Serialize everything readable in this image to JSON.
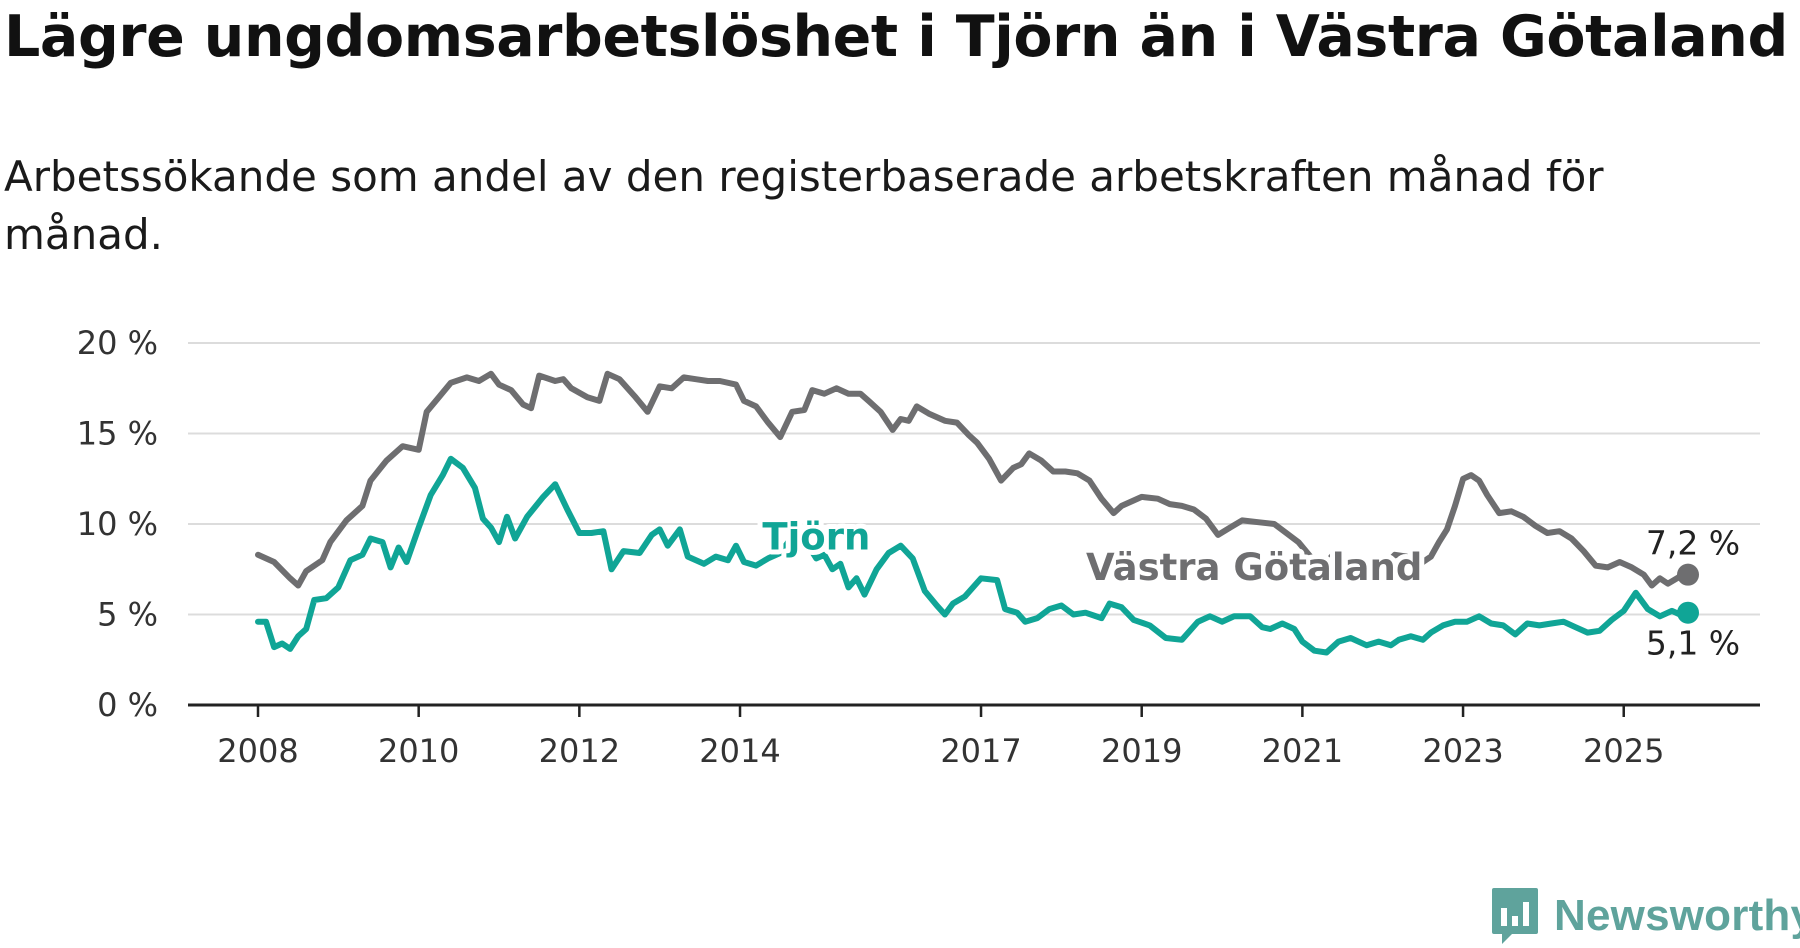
{
  "title": "Lägre ungdomsarbetslöshet i Tjörn än i Västra Götaland",
  "subtitle": "Arbetssökande som andel av den registerbaserade arbetskraften månad för månad.",
  "brand": {
    "name": "Newsworthy",
    "color": "#5fa39c"
  },
  "chart_data": {
    "type": "line",
    "title": "Lägre ungdomsarbetslöshet i Tjörn än i Västra Götaland",
    "ylim": [
      0,
      20
    ],
    "xlim": [
      2008.0,
      2025.8
    ],
    "y_ticks": [
      0,
      5,
      10,
      15,
      20
    ],
    "y_tick_labels": [
      "0 %",
      "5 %",
      "10 %",
      "15 %",
      "20 %"
    ],
    "x_ticks": [
      2008,
      2010,
      2012,
      2014,
      2017,
      2019,
      2021,
      2023,
      2025
    ],
    "x_tick_labels": [
      "2008",
      "2010",
      "2012",
      "2014",
      "2017",
      "2019",
      "2021",
      "2023",
      "2025"
    ],
    "grid": "horizontal",
    "series": [
      {
        "name": "Västra Götaland",
        "color": "#6e6e70",
        "end_label": "7,2 %",
        "points": [
          [
            2008.0,
            8.3
          ],
          [
            2008.2,
            7.9
          ],
          [
            2008.4,
            7.0
          ],
          [
            2008.5,
            6.6
          ],
          [
            2008.6,
            7.4
          ],
          [
            2008.8,
            8.0
          ],
          [
            2008.9,
            9.0
          ],
          [
            2009.1,
            10.2
          ],
          [
            2009.3,
            11.0
          ],
          [
            2009.4,
            12.4
          ],
          [
            2009.6,
            13.5
          ],
          [
            2009.8,
            14.3
          ],
          [
            2010.0,
            14.1
          ],
          [
            2010.1,
            16.2
          ],
          [
            2010.25,
            17.0
          ],
          [
            2010.4,
            17.8
          ],
          [
            2010.6,
            18.1
          ],
          [
            2010.75,
            17.9
          ],
          [
            2010.9,
            18.3
          ],
          [
            2011.0,
            17.7
          ],
          [
            2011.15,
            17.4
          ],
          [
            2011.3,
            16.6
          ],
          [
            2011.4,
            16.4
          ],
          [
            2011.5,
            18.2
          ],
          [
            2011.7,
            17.9
          ],
          [
            2011.8,
            18.0
          ],
          [
            2011.9,
            17.5
          ],
          [
            2012.1,
            17.0
          ],
          [
            2012.25,
            16.8
          ],
          [
            2012.35,
            18.3
          ],
          [
            2012.5,
            18.0
          ],
          [
            2012.7,
            17.0
          ],
          [
            2012.85,
            16.2
          ],
          [
            2013.0,
            17.6
          ],
          [
            2013.15,
            17.5
          ],
          [
            2013.3,
            18.1
          ],
          [
            2013.45,
            18.0
          ],
          [
            2013.6,
            17.9
          ],
          [
            2013.75,
            17.9
          ],
          [
            2013.95,
            17.7
          ],
          [
            2014.05,
            16.8
          ],
          [
            2014.2,
            16.5
          ],
          [
            2014.35,
            15.6
          ],
          [
            2014.5,
            14.8
          ],
          [
            2014.65,
            16.2
          ],
          [
            2014.8,
            16.3
          ],
          [
            2014.9,
            17.4
          ],
          [
            2015.05,
            17.2
          ],
          [
            2015.2,
            17.5
          ],
          [
            2015.35,
            17.2
          ],
          [
            2015.5,
            17.2
          ],
          [
            2015.6,
            16.8
          ],
          [
            2015.75,
            16.2
          ],
          [
            2015.9,
            15.2
          ],
          [
            2016.0,
            15.8
          ],
          [
            2016.1,
            15.7
          ],
          [
            2016.2,
            16.5
          ],
          [
            2016.35,
            16.1
          ],
          [
            2016.55,
            15.7
          ],
          [
            2016.7,
            15.6
          ],
          [
            2016.85,
            14.9
          ],
          [
            2016.95,
            14.5
          ],
          [
            2017.1,
            13.6
          ],
          [
            2017.25,
            12.4
          ],
          [
            2017.4,
            13.1
          ],
          [
            2017.5,
            13.3
          ],
          [
            2017.6,
            13.9
          ],
          [
            2017.75,
            13.5
          ],
          [
            2017.9,
            12.9
          ],
          [
            2018.05,
            12.9
          ],
          [
            2018.2,
            12.8
          ],
          [
            2018.35,
            12.4
          ],
          [
            2018.5,
            11.4
          ],
          [
            2018.65,
            10.6
          ],
          [
            2018.75,
            11.0
          ],
          [
            2018.85,
            11.2
          ],
          [
            2019.0,
            11.5
          ],
          [
            2019.2,
            11.4
          ],
          [
            2019.35,
            11.1
          ],
          [
            2019.5,
            11.0
          ],
          [
            2019.65,
            10.8
          ],
          [
            2019.8,
            10.3
          ],
          [
            2019.95,
            9.4
          ],
          [
            2020.1,
            9.8
          ],
          [
            2020.25,
            10.2
          ],
          [
            2020.45,
            10.1
          ],
          [
            2020.65,
            10.0
          ],
          [
            2020.8,
            9.5
          ],
          [
            2020.95,
            9.0
          ],
          [
            2021.1,
            8.2
          ],
          [
            2021.25,
            7.6
          ],
          [
            2021.4,
            8.4
          ],
          [
            2021.55,
            8.0
          ],
          [
            2021.7,
            8.0
          ],
          [
            2021.85,
            7.8
          ],
          [
            2022.0,
            7.6
          ],
          [
            2022.15,
            8.3
          ],
          [
            2022.3,
            8.2
          ],
          [
            2022.4,
            7.5
          ],
          [
            2022.5,
            7.9
          ],
          [
            2022.6,
            8.2
          ],
          [
            2022.7,
            9.0
          ],
          [
            2022.8,
            9.7
          ],
          [
            2022.9,
            11.0
          ],
          [
            2023.0,
            12.5
          ],
          [
            2023.1,
            12.7
          ],
          [
            2023.2,
            12.4
          ],
          [
            2023.3,
            11.6
          ],
          [
            2023.45,
            10.6
          ],
          [
            2023.6,
            10.7
          ],
          [
            2023.75,
            10.4
          ],
          [
            2023.9,
            9.9
          ],
          [
            2024.05,
            9.5
          ],
          [
            2024.2,
            9.6
          ],
          [
            2024.35,
            9.2
          ],
          [
            2024.5,
            8.5
          ],
          [
            2024.65,
            7.7
          ],
          [
            2024.8,
            7.6
          ],
          [
            2024.95,
            7.9
          ],
          [
            2025.1,
            7.6
          ],
          [
            2025.25,
            7.2
          ],
          [
            2025.35,
            6.6
          ],
          [
            2025.45,
            7.0
          ],
          [
            2025.55,
            6.7
          ],
          [
            2025.7,
            7.1
          ],
          [
            2025.8,
            7.2
          ]
        ]
      },
      {
        "name": "Tjörn",
        "color": "#10a596",
        "end_label": "5,1 %",
        "points": [
          [
            2008.0,
            4.6
          ],
          [
            2008.1,
            4.6
          ],
          [
            2008.2,
            3.2
          ],
          [
            2008.3,
            3.4
          ],
          [
            2008.4,
            3.1
          ],
          [
            2008.5,
            3.8
          ],
          [
            2008.6,
            4.2
          ],
          [
            2008.7,
            5.8
          ],
          [
            2008.85,
            5.9
          ],
          [
            2009.0,
            6.5
          ],
          [
            2009.15,
            8.0
          ],
          [
            2009.3,
            8.3
          ],
          [
            2009.4,
            9.2
          ],
          [
            2009.55,
            9.0
          ],
          [
            2009.65,
            7.6
          ],
          [
            2009.75,
            8.7
          ],
          [
            2009.85,
            7.9
          ],
          [
            2010.0,
            9.8
          ],
          [
            2010.15,
            11.6
          ],
          [
            2010.3,
            12.7
          ],
          [
            2010.4,
            13.6
          ],
          [
            2010.55,
            13.1
          ],
          [
            2010.7,
            12.0
          ],
          [
            2010.8,
            10.3
          ],
          [
            2010.9,
            9.8
          ],
          [
            2011.0,
            9.0
          ],
          [
            2011.1,
            10.4
          ],
          [
            2011.2,
            9.2
          ],
          [
            2011.35,
            10.4
          ],
          [
            2011.55,
            11.5
          ],
          [
            2011.7,
            12.2
          ],
          [
            2011.85,
            10.8
          ],
          [
            2012.0,
            9.5
          ],
          [
            2012.15,
            9.5
          ],
          [
            2012.3,
            9.6
          ],
          [
            2012.4,
            7.5
          ],
          [
            2012.55,
            8.5
          ],
          [
            2012.75,
            8.4
          ],
          [
            2012.9,
            9.4
          ],
          [
            2013.0,
            9.7
          ],
          [
            2013.1,
            8.8
          ],
          [
            2013.25,
            9.7
          ],
          [
            2013.35,
            8.2
          ],
          [
            2013.55,
            7.8
          ],
          [
            2013.7,
            8.2
          ],
          [
            2013.85,
            8.0
          ],
          [
            2013.95,
            8.8
          ],
          [
            2014.05,
            7.9
          ],
          [
            2014.2,
            7.7
          ],
          [
            2014.35,
            8.1
          ],
          [
            2014.5,
            8.4
          ],
          [
            2014.6,
            9.0
          ],
          [
            2014.7,
            9.1
          ],
          [
            2014.85,
            8.8
          ],
          [
            2014.95,
            8.1
          ],
          [
            2015.05,
            8.3
          ],
          [
            2015.15,
            7.5
          ],
          [
            2015.25,
            7.8
          ],
          [
            2015.35,
            6.5
          ],
          [
            2015.45,
            7.0
          ],
          [
            2015.55,
            6.1
          ],
          [
            2015.7,
            7.5
          ],
          [
            2015.85,
            8.4
          ],
          [
            2016.0,
            8.8
          ],
          [
            2016.15,
            8.1
          ],
          [
            2016.3,
            6.3
          ],
          [
            2016.45,
            5.5
          ],
          [
            2016.55,
            5.0
          ],
          [
            2016.65,
            5.6
          ],
          [
            2016.8,
            6.0
          ],
          [
            2017.0,
            7.0
          ],
          [
            2017.2,
            6.9
          ],
          [
            2017.3,
            5.3
          ],
          [
            2017.45,
            5.1
          ],
          [
            2017.55,
            4.6
          ],
          [
            2017.7,
            4.8
          ],
          [
            2017.85,
            5.3
          ],
          [
            2018.0,
            5.5
          ],
          [
            2018.15,
            5.0
          ],
          [
            2018.3,
            5.1
          ],
          [
            2018.5,
            4.8
          ],
          [
            2018.6,
            5.6
          ],
          [
            2018.75,
            5.4
          ],
          [
            2018.9,
            4.7
          ],
          [
            2019.1,
            4.4
          ],
          [
            2019.3,
            3.7
          ],
          [
            2019.5,
            3.6
          ],
          [
            2019.7,
            4.6
          ],
          [
            2019.85,
            4.9
          ],
          [
            2020.0,
            4.6
          ],
          [
            2020.15,
            4.9
          ],
          [
            2020.35,
            4.9
          ],
          [
            2020.5,
            4.3
          ],
          [
            2020.6,
            4.2
          ],
          [
            2020.75,
            4.5
          ],
          [
            2020.9,
            4.2
          ],
          [
            2021.0,
            3.5
          ],
          [
            2021.15,
            3.0
          ],
          [
            2021.3,
            2.9
          ],
          [
            2021.45,
            3.5
          ],
          [
            2021.6,
            3.7
          ],
          [
            2021.8,
            3.3
          ],
          [
            2021.95,
            3.5
          ],
          [
            2022.1,
            3.3
          ],
          [
            2022.2,
            3.6
          ],
          [
            2022.35,
            3.8
          ],
          [
            2022.5,
            3.6
          ],
          [
            2022.6,
            4.0
          ],
          [
            2022.75,
            4.4
          ],
          [
            2022.9,
            4.6
          ],
          [
            2023.05,
            4.6
          ],
          [
            2023.2,
            4.9
          ],
          [
            2023.35,
            4.5
          ],
          [
            2023.5,
            4.4
          ],
          [
            2023.65,
            3.9
          ],
          [
            2023.8,
            4.5
          ],
          [
            2023.95,
            4.4
          ],
          [
            2024.1,
            4.5
          ],
          [
            2024.25,
            4.6
          ],
          [
            2024.4,
            4.3
          ],
          [
            2024.55,
            4.0
          ],
          [
            2024.7,
            4.1
          ],
          [
            2024.85,
            4.7
          ],
          [
            2025.0,
            5.2
          ],
          [
            2025.15,
            6.2
          ],
          [
            2025.3,
            5.3
          ],
          [
            2025.45,
            4.9
          ],
          [
            2025.6,
            5.2
          ],
          [
            2025.7,
            5.0
          ],
          [
            2025.8,
            5.1
          ]
        ]
      }
    ]
  }
}
